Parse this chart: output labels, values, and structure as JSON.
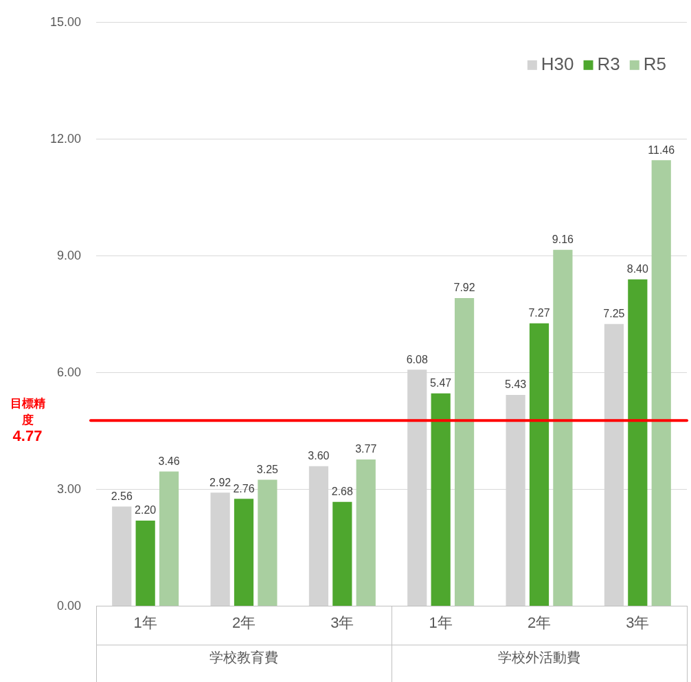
{
  "chart_data": {
    "type": "bar",
    "categories": [
      "1年",
      "2年",
      "3年",
      "1年",
      "2年",
      "3年"
    ],
    "series": [
      {
        "name": "H30",
        "color": "#d3d3d3",
        "values": [
          2.56,
          2.92,
          3.6,
          6.08,
          5.43,
          7.25
        ],
        "value_labels": [
          "2.56",
          "2.92",
          "3.60",
          "6.08",
          "5.43",
          "7.25"
        ]
      },
      {
        "name": "R3",
        "color": "#4ea72e",
        "values": [
          2.2,
          2.76,
          2.68,
          5.47,
          7.27,
          8.4
        ],
        "value_labels": [
          "2.20",
          "2.76",
          "2.68",
          "5.47",
          "7.27",
          "8.40"
        ]
      },
      {
        "name": "R5",
        "color": "#a9cfa0",
        "values": [
          3.46,
          3.25,
          3.77,
          7.92,
          9.16,
          11.46
        ],
        "value_labels": [
          "3.46",
          "3.25",
          "3.77",
          "7.92",
          "9.16",
          "11.46"
        ]
      }
    ],
    "ylim": [
      0,
      15
    ],
    "yticks": [
      {
        "value": 0,
        "label": "0.00"
      },
      {
        "value": 3,
        "label": "3.00"
      },
      {
        "value": 6,
        "label": "6.00"
      },
      {
        "value": 9,
        "label": "9.00"
      },
      {
        "value": 12,
        "label": "12.00"
      },
      {
        "value": 15,
        "label": "15.00"
      }
    ],
    "grid": "y",
    "legend": "top right",
    "ref_lines": [
      {
        "axis": "y",
        "value": 4.77,
        "label": "目標精度\n4.77",
        "color": "#ff0000"
      }
    ],
    "annotations": [
      "学校教育費",
      "学校外活動費"
    ]
  }
}
